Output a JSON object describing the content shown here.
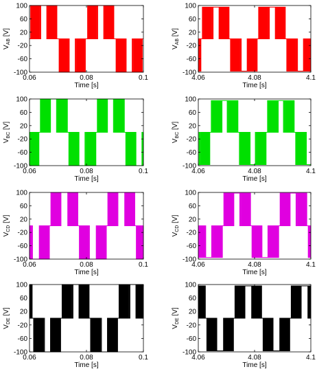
{
  "chart_data": [
    {
      "id": "ab_start",
      "type": "line",
      "ylabel": {
        "main": "V",
        "sub": "AB",
        "unit": "[V]"
      },
      "xlabel": "Time [s]",
      "xlim": [
        0.06,
        0.1
      ],
      "ylim": [
        -100,
        100
      ],
      "xticks": [
        {
          "v": 0.06,
          "t": "0.06"
        },
        {
          "v": 0.08,
          "t": "0.08"
        },
        {
          "v": 0.1,
          "t": "0.1"
        }
      ],
      "yticks": [
        {
          "v": 100,
          "t": "100"
        },
        {
          "v": 60,
          "t": "60"
        },
        {
          "v": 20,
          "t": "20"
        },
        {
          "v": -20,
          "t": "-20"
        },
        {
          "v": -60,
          "t": "-60"
        },
        {
          "v": -100,
          "t": "-100"
        }
      ],
      "color": "#ff0000",
      "wave": {
        "period": 0.02,
        "phase_deg": 0,
        "amplitude": 100,
        "high": 100,
        "low": -100
      }
    },
    {
      "id": "ab_end",
      "type": "line",
      "ylabel": {
        "main": "V",
        "sub": "AB",
        "unit": "[V]"
      },
      "xlabel": "Time [s]",
      "xlim": [
        4.06,
        4.1
      ],
      "ylim": [
        -100,
        100
      ],
      "xticks": [
        {
          "v": 4.06,
          "t": "4.06"
        },
        {
          "v": 4.08,
          "t": "4.08"
        },
        {
          "v": 4.1,
          "t": "4.1"
        }
      ],
      "yticks": [
        {
          "v": 100,
          "t": "100"
        },
        {
          "v": 60,
          "t": "60"
        },
        {
          "v": 20,
          "t": "20"
        },
        {
          "v": -20,
          "t": "-20"
        },
        {
          "v": -60,
          "t": "-60"
        },
        {
          "v": -100,
          "t": "-100"
        }
      ],
      "color": "#ff0000",
      "wave": {
        "period": 0.02,
        "phase_deg": -20,
        "amplitude": 100,
        "high": 95,
        "low": -97
      }
    },
    {
      "id": "bc_start",
      "type": "line",
      "ylabel": {
        "main": "V",
        "sub": "BC",
        "unit": "[V]"
      },
      "xlabel": "Time [s]",
      "xlim": [
        0.06,
        0.1
      ],
      "ylim": [
        -100,
        100
      ],
      "xticks": [
        {
          "v": 0.06,
          "t": "0.06"
        },
        {
          "v": 0.08,
          "t": "0.08"
        },
        {
          "v": 0.1,
          "t": "0.1"
        }
      ],
      "yticks": [
        {
          "v": 100,
          "t": "100"
        },
        {
          "v": 60,
          "t": "60"
        },
        {
          "v": 20,
          "t": "20"
        },
        {
          "v": -20,
          "t": "-20"
        },
        {
          "v": -60,
          "t": "-60"
        },
        {
          "v": -100,
          "t": "-100"
        }
      ],
      "color": "#00e000",
      "wave": {
        "period": 0.02,
        "phase_deg": -65,
        "amplitude": 100,
        "high": 100,
        "low": -100
      }
    },
    {
      "id": "bc_end",
      "type": "line",
      "ylabel": {
        "main": "V",
        "sub": "BC",
        "unit": "[V]"
      },
      "xlabel": "Time [s]",
      "xlim": [
        4.06,
        4.1
      ],
      "ylim": [
        -100,
        100
      ],
      "xticks": [
        {
          "v": 4.06,
          "t": "4.06"
        },
        {
          "v": 4.08,
          "t": "4.08"
        },
        {
          "v": 4.1,
          "t": "4.1"
        }
      ],
      "yticks": [
        {
          "v": 100,
          "t": "100"
        },
        {
          "v": 60,
          "t": "60"
        },
        {
          "v": 20,
          "t": "20"
        },
        {
          "v": -20,
          "t": "-20"
        },
        {
          "v": -60,
          "t": "-60"
        },
        {
          "v": -100,
          "t": "-100"
        }
      ],
      "color": "#00e000",
      "wave": {
        "period": 0.02,
        "phase_deg": -80,
        "amplitude": 100,
        "high": 95,
        "low": -97
      }
    },
    {
      "id": "cd_start",
      "type": "line",
      "ylabel": {
        "main": "V",
        "sub": "CD",
        "unit": "[V]"
      },
      "xlabel": "Time [s]",
      "xlim": [
        0.06,
        0.1
      ],
      "ylim": [
        -100,
        100
      ],
      "xticks": [
        {
          "v": 0.06,
          "t": "0.06"
        },
        {
          "v": 0.08,
          "t": "0.08"
        },
        {
          "v": 0.1,
          "t": "0.1"
        }
      ],
      "yticks": [
        {
          "v": 100,
          "t": "100"
        },
        {
          "v": 60,
          "t": "60"
        },
        {
          "v": 20,
          "t": "20"
        },
        {
          "v": -20,
          "t": "-20"
        },
        {
          "v": -60,
          "t": "-60"
        },
        {
          "v": -100,
          "t": "-100"
        }
      ],
      "color": "#e000e0",
      "wave": {
        "period": 0.02,
        "phase_deg": -130,
        "amplitude": 100,
        "high": 100,
        "low": -100
      }
    },
    {
      "id": "cd_end",
      "type": "line",
      "ylabel": {
        "main": "V",
        "sub": "CD",
        "unit": "[V]"
      },
      "xlabel": "Time [s]",
      "xlim": [
        4.06,
        4.1
      ],
      "ylim": [
        -100,
        100
      ],
      "xticks": [
        {
          "v": 4.06,
          "t": "4.06"
        },
        {
          "v": 4.08,
          "t": "4.08"
        },
        {
          "v": 4.1,
          "t": "4.1"
        }
      ],
      "yticks": [
        {
          "v": 100,
          "t": "100"
        },
        {
          "v": 60,
          "t": "60"
        },
        {
          "v": 20,
          "t": "20"
        },
        {
          "v": -20,
          "t": "-20"
        },
        {
          "v": -60,
          "t": "-60"
        },
        {
          "v": -100,
          "t": "-100"
        }
      ],
      "color": "#e000e0",
      "wave": {
        "period": 0.02,
        "phase_deg": -160,
        "amplitude": 100,
        "high": 98,
        "low": -95
      }
    },
    {
      "id": "de_start",
      "type": "line",
      "ylabel": {
        "main": "V",
        "sub": "DE",
        "unit": "[V]"
      },
      "xlabel": "Time [s]",
      "xlim": [
        0.06,
        0.1
      ],
      "ylim": [
        -100,
        100
      ],
      "xticks": [
        {
          "v": 0.06,
          "t": "0.06"
        },
        {
          "v": 0.08,
          "t": "0.08"
        },
        {
          "v": 0.1,
          "t": "0.1"
        }
      ],
      "yticks": [
        {
          "v": 100,
          "t": "100"
        },
        {
          "v": 60,
          "t": "60"
        },
        {
          "v": 20,
          "t": "20"
        },
        {
          "v": -20,
          "t": "-20"
        },
        {
          "v": -60,
          "t": "-60"
        },
        {
          "v": -100,
          "t": "-100"
        }
      ],
      "color": "#000000",
      "wave": {
        "period": 0.02,
        "phase_deg": -200,
        "amplitude": 100,
        "high": 100,
        "low": -100
      }
    },
    {
      "id": "de_end",
      "type": "line",
      "ylabel": {
        "main": "V",
        "sub": "DE",
        "unit": "[V]"
      },
      "xlabel": "Time [s]",
      "xlim": [
        4.06,
        4.1
      ],
      "ylim": [
        -100,
        100
      ],
      "xticks": [
        {
          "v": 4.06,
          "t": "4.06"
        },
        {
          "v": 4.08,
          "t": "4.08"
        },
        {
          "v": 4.1,
          "t": "4.1"
        }
      ],
      "yticks": [
        {
          "v": 100,
          "t": "100"
        },
        {
          "v": 60,
          "t": "60"
        },
        {
          "v": 20,
          "t": "20"
        },
        {
          "v": -20,
          "t": "-20"
        },
        {
          "v": -60,
          "t": "-60"
        },
        {
          "v": -100,
          "t": "-100"
        }
      ],
      "color": "#000000",
      "wave": {
        "period": 0.02,
        "phase_deg": -230,
        "amplitude": 100,
        "high": 96,
        "low": -97
      }
    }
  ]
}
